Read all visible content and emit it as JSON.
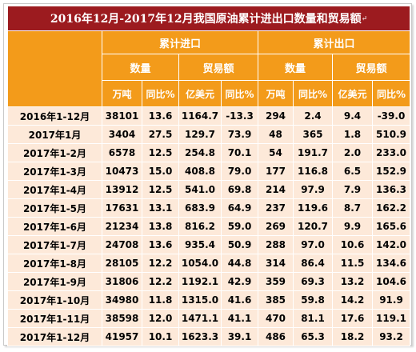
{
  "title": "2016年12月-2017年12月我国原油累计进出口数量和贸易额",
  "title_mark": "↵",
  "header": {
    "import_group": "累计进口",
    "export_group": "累计出口",
    "quantity": "数量",
    "trade_value": "贸易额",
    "units": [
      "万吨",
      "同比%",
      "亿美元",
      "同比%",
      "万吨",
      "同比%",
      "亿美元",
      "同比%"
    ]
  },
  "rows": [
    {
      "label": "2016年1-12月",
      "v": [
        "38101",
        "13.6",
        "1164.7",
        "-13.3",
        "294",
        "2.4",
        "9.4",
        "-39.0"
      ]
    },
    {
      "label": "2017年1月",
      "v": [
        "3404",
        "27.5",
        "129.7",
        "73.9",
        "48",
        "365",
        "1.8",
        "510.9"
      ]
    },
    {
      "label": "2017年1-2月",
      "v": [
        "6578",
        "12.5",
        "254.8",
        "70.1",
        "54",
        "191.7",
        "2.0",
        "233.0"
      ]
    },
    {
      "label": "2017年1-3月",
      "v": [
        "10473",
        "15.0",
        "408.8",
        "79.0",
        "177",
        "116.8",
        "6.5",
        "152.9"
      ]
    },
    {
      "label": "2017年1-4月",
      "v": [
        "13912",
        "12.5",
        "541.0",
        "69.8",
        "214",
        "97.9",
        "7.9",
        "136.3"
      ]
    },
    {
      "label": "2017年1-5月",
      "v": [
        "17631",
        "13.1",
        "683.9",
        "64.9",
        "237",
        "119.6",
        "8.7",
        "162.2"
      ]
    },
    {
      "label": "2017年1-6月",
      "v": [
        "21234",
        "13.8",
        "816.2",
        "59.0",
        "269",
        "120.7",
        "9.9",
        "165.6"
      ]
    },
    {
      "label": "2017年1-7月",
      "v": [
        "24708",
        "13.6",
        "935.4",
        "50.9",
        "288",
        "97.0",
        "10.6",
        "142.0"
      ]
    },
    {
      "label": "2017年1-8月",
      "v": [
        "28105",
        "12.2",
        "1054.0",
        "44.8",
        "314",
        "86.4",
        "11.5",
        "134.6"
      ]
    },
    {
      "label": "2017年1-9月",
      "v": [
        "31806",
        "12.2",
        "1192.1",
        "42.9",
        "359",
        "69.3",
        "13.2",
        "104.6"
      ]
    },
    {
      "label": "2017年1-10月",
      "v": [
        "34980",
        "11.8",
        "1315.0",
        "41.6",
        "385",
        "59.8",
        "14.2",
        "91.9"
      ]
    },
    {
      "label": "2017年1-11月",
      "v": [
        "38598",
        "12.0",
        "1471.1",
        "41.1",
        "470",
        "81.1",
        "17.6",
        "119.1"
      ]
    },
    {
      "label": "2017年1-12月",
      "v": [
        "41957",
        "10.1",
        "1623.3",
        "39.1",
        "486",
        "65.3",
        "18.2",
        "93.2"
      ]
    }
  ]
}
